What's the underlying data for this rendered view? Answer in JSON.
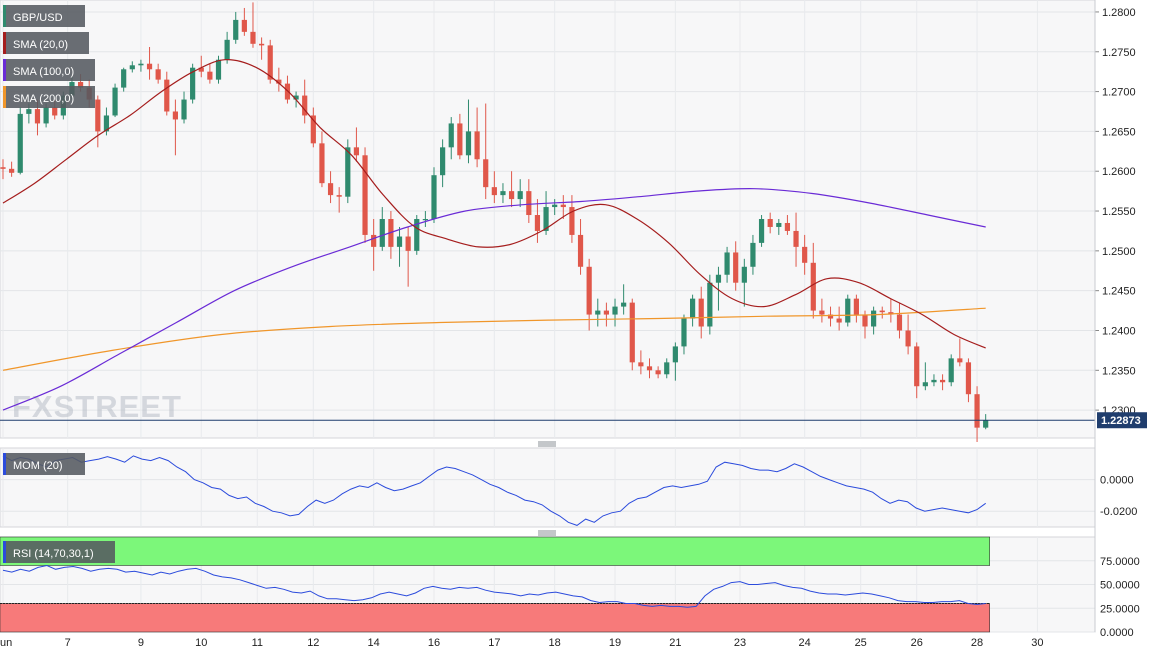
{
  "chart_data": [
    {
      "type": "candlestick",
      "symbol": "GBP/USD",
      "indicators": [
        {
          "name": "SMA (20,0)",
          "color": "#a51d1d"
        },
        {
          "name": "SMA (100,0)",
          "color": "#6a2bd6"
        },
        {
          "name": "SMA (200,0)",
          "color": "#f0962a"
        }
      ],
      "y_ticks": [
        "1.2800",
        "1.2750",
        "1.2700",
        "1.2650",
        "1.2600",
        "1.2550",
        "1.2500",
        "1.2450",
        "1.2400",
        "1.2350",
        "1.2300"
      ],
      "ylim": [
        1.2265,
        1.2815
      ],
      "last_price": "1.22873",
      "watermark": "FXSTREET",
      "colors": {
        "up": "#2f8a6e",
        "down": "#e0574a",
        "background": "#f7f7f8",
        "price_line": "#1f3d6d"
      },
      "candles": [
        [
          1.2605,
          1.2615,
          1.259,
          1.2603
        ],
        [
          1.2603,
          1.2612,
          1.2593,
          1.2598
        ],
        [
          1.2598,
          1.268,
          1.2596,
          1.2672
        ],
        [
          1.2672,
          1.2685,
          1.266,
          1.2678
        ],
        [
          1.2678,
          1.269,
          1.2645,
          1.266
        ],
        [
          1.266,
          1.2685,
          1.2655,
          1.268
        ],
        [
          1.268,
          1.269,
          1.2665,
          1.267
        ],
        [
          1.267,
          1.27,
          1.2665,
          1.2695
        ],
        [
          1.2695,
          1.272,
          1.269,
          1.2712
        ],
        [
          1.2712,
          1.2722,
          1.27,
          1.2705
        ],
        [
          1.2705,
          1.2715,
          1.268,
          1.269
        ],
        [
          1.269,
          1.2695,
          1.263,
          1.265
        ],
        [
          1.265,
          1.268,
          1.2645,
          1.267
        ],
        [
          1.267,
          1.271,
          1.2668,
          1.2705
        ],
        [
          1.2705,
          1.273,
          1.27,
          1.2728
        ],
        [
          1.2728,
          1.2738,
          1.2724,
          1.2733
        ],
        [
          1.2733,
          1.274,
          1.2725,
          1.2735
        ],
        [
          1.2735,
          1.2756,
          1.2715,
          1.2728
        ],
        [
          1.2728,
          1.2735,
          1.271,
          1.2715
        ],
        [
          1.2715,
          1.2725,
          1.267,
          1.2675
        ],
        [
          1.2675,
          1.269,
          1.262,
          1.2665
        ],
        [
          1.2665,
          1.27,
          1.266,
          1.269
        ],
        [
          1.269,
          1.2735,
          1.2685,
          1.273
        ],
        [
          1.273,
          1.2745,
          1.2718,
          1.2725
        ],
        [
          1.2725,
          1.2735,
          1.271,
          1.2715
        ],
        [
          1.2715,
          1.2745,
          1.271,
          1.274
        ],
        [
          1.274,
          1.2775,
          1.2735,
          1.2765
        ],
        [
          1.2765,
          1.28,
          1.276,
          1.279
        ],
        [
          1.279,
          1.2805,
          1.277,
          1.2775
        ],
        [
          1.2775,
          1.2812,
          1.2755,
          1.276
        ],
        [
          1.276,
          1.2768,
          1.274,
          1.2758
        ],
        [
          1.2758,
          1.2765,
          1.271,
          1.2715
        ],
        [
          1.2715,
          1.273,
          1.27,
          1.271
        ],
        [
          1.271,
          1.272,
          1.2685,
          1.269
        ],
        [
          1.269,
          1.27,
          1.268,
          1.2695
        ],
        [
          1.2695,
          1.2715,
          1.266,
          1.267
        ],
        [
          1.267,
          1.268,
          1.263,
          1.2635
        ],
        [
          1.2635,
          1.265,
          1.258,
          1.2585
        ],
        [
          1.2585,
          1.26,
          1.256,
          1.257
        ],
        [
          1.257,
          1.258,
          1.2548,
          1.2568
        ],
        [
          1.2568,
          1.264,
          1.256,
          1.263
        ],
        [
          1.263,
          1.2655,
          1.2612,
          1.262
        ],
        [
          1.262,
          1.263,
          1.251,
          1.252
        ],
        [
          1.252,
          1.254,
          1.2475,
          1.2505
        ],
        [
          1.2505,
          1.2555,
          1.25,
          1.254
        ],
        [
          1.254,
          1.255,
          1.249,
          1.2505
        ],
        [
          1.2505,
          1.253,
          1.248,
          1.2518
        ],
        [
          1.2518,
          1.253,
          1.2455,
          1.25
        ],
        [
          1.25,
          1.2545,
          1.2495,
          1.254
        ],
        [
          1.254,
          1.255,
          1.253,
          1.254
        ],
        [
          1.254,
          1.2605,
          1.2535,
          1.2595
        ],
        [
          1.2595,
          1.264,
          1.258,
          1.263
        ],
        [
          1.263,
          1.2668,
          1.2615,
          1.266
        ],
        [
          1.266,
          1.2672,
          1.2615,
          1.262
        ],
        [
          1.262,
          1.269,
          1.261,
          1.265
        ],
        [
          1.265,
          1.268,
          1.2605,
          1.2615
        ],
        [
          1.2615,
          1.2685,
          1.2565,
          1.258
        ],
        [
          1.258,
          1.26,
          1.256,
          1.257
        ],
        [
          1.257,
          1.2585,
          1.256,
          1.2575
        ],
        [
          1.2575,
          1.26,
          1.2555,
          1.2565
        ],
        [
          1.2565,
          1.259,
          1.2555,
          1.2575
        ],
        [
          1.2575,
          1.259,
          1.2535,
          1.2545
        ],
        [
          1.2545,
          1.2565,
          1.251,
          1.2525
        ],
        [
          1.2525,
          1.2575,
          1.252,
          1.2555
        ],
        [
          1.2555,
          1.2565,
          1.2545,
          1.2558
        ],
        [
          1.2558,
          1.257,
          1.254,
          1.2555
        ],
        [
          1.2555,
          1.257,
          1.251,
          1.252
        ],
        [
          1.252,
          1.254,
          1.247,
          1.248
        ],
        [
          1.248,
          1.249,
          1.24,
          1.242
        ],
        [
          1.242,
          1.244,
          1.2405,
          1.2425
        ],
        [
          1.2425,
          1.2435,
          1.2405,
          1.242
        ],
        [
          1.242,
          1.244,
          1.2405,
          1.243
        ],
        [
          1.243,
          1.2458,
          1.242,
          1.2435
        ],
        [
          1.2435,
          1.244,
          1.235,
          1.236
        ],
        [
          1.236,
          1.2375,
          1.2345,
          1.2355
        ],
        [
          1.2355,
          1.2365,
          1.234,
          1.235
        ],
        [
          1.235,
          1.2355,
          1.234,
          1.2345
        ],
        [
          1.2345,
          1.2365,
          1.234,
          1.236
        ],
        [
          1.236,
          1.2385,
          1.2337,
          1.238
        ],
        [
          1.238,
          1.242,
          1.237,
          1.2415
        ],
        [
          1.2415,
          1.2445,
          1.2405,
          1.244
        ],
        [
          1.244,
          1.2455,
          1.239,
          1.2405
        ],
        [
          1.2405,
          1.247,
          1.2395,
          1.246
        ],
        [
          1.246,
          1.248,
          1.2425,
          1.247
        ],
        [
          1.247,
          1.2505,
          1.246,
          1.2498
        ],
        [
          1.2498,
          1.2512,
          1.245,
          1.246
        ],
        [
          1.246,
          1.249,
          1.243,
          1.248
        ],
        [
          1.248,
          1.252,
          1.247,
          1.251
        ],
        [
          1.251,
          1.2545,
          1.2505,
          1.254
        ],
        [
          1.254,
          1.2548,
          1.2522,
          1.253
        ],
        [
          1.253,
          1.254,
          1.252,
          1.2535
        ],
        [
          1.2535,
          1.2545,
          1.252,
          1.2525
        ],
        [
          1.2525,
          1.2548,
          1.248,
          1.2505
        ],
        [
          1.2505,
          1.252,
          1.247,
          1.2485
        ],
        [
          1.2485,
          1.251,
          1.2415,
          1.2425
        ],
        [
          1.2425,
          1.244,
          1.241,
          1.242
        ],
        [
          1.242,
          1.243,
          1.2405,
          1.2415
        ],
        [
          1.2415,
          1.243,
          1.24,
          1.241
        ],
        [
          1.241,
          1.2445,
          1.2405,
          1.244
        ],
        [
          1.244,
          1.2445,
          1.241,
          1.242
        ],
        [
          1.242,
          1.2425,
          1.239,
          1.2405
        ],
        [
          1.2405,
          1.243,
          1.2395,
          1.2425
        ],
        [
          1.2425,
          1.243,
          1.2415,
          1.2423
        ],
        [
          1.2423,
          1.244,
          1.241,
          1.242
        ],
        [
          1.242,
          1.2435,
          1.239,
          1.24
        ],
        [
          1.24,
          1.242,
          1.237,
          1.238
        ],
        [
          1.238,
          1.2385,
          1.2315,
          1.233
        ],
        [
          1.233,
          1.236,
          1.2325,
          1.2335
        ],
        [
          1.2335,
          1.2345,
          1.233,
          1.2338
        ],
        [
          1.2338,
          1.2345,
          1.2325,
          1.2335
        ],
        [
          1.2335,
          1.237,
          1.233,
          1.2365
        ],
        [
          1.2365,
          1.239,
          1.2355,
          1.236
        ],
        [
          1.236,
          1.2365,
          1.231,
          1.232
        ],
        [
          1.232,
          1.233,
          1.226,
          1.2278
        ],
        [
          1.2278,
          1.2295,
          1.2276,
          1.2287
        ]
      ],
      "sma20": [
        1.256,
        1.2585,
        1.2615,
        1.2645,
        1.267,
        1.27,
        1.2725,
        1.274,
        1.273,
        1.27,
        1.2655,
        1.262,
        1.257,
        1.253,
        1.2515,
        1.2505,
        1.2508,
        1.2525,
        1.255,
        1.2558,
        1.254,
        1.251,
        1.247,
        1.244,
        1.243,
        1.2445,
        1.2465,
        1.246,
        1.244,
        1.242,
        1.2395,
        1.2378
      ],
      "sma100": [
        1.23,
        1.233,
        1.237,
        1.241,
        1.245,
        1.248,
        1.2505,
        1.253,
        1.255,
        1.2558,
        1.2562,
        1.2568,
        1.2575,
        1.2578,
        1.2572,
        1.256,
        1.2545,
        1.253
      ],
      "sma200": [
        1.235,
        1.2375,
        1.2395,
        1.2405,
        1.241,
        1.2413,
        1.2415,
        1.2418,
        1.242,
        1.2428
      ],
      "x_labels": [
        {
          "label": "un",
          "idx": 0
        },
        {
          "label": "7",
          "idx": 7.5
        },
        {
          "label": "9",
          "idx": 16
        },
        {
          "label": "10",
          "idx": 23
        },
        {
          "label": "11",
          "idx": 29.5
        },
        {
          "label": "12",
          "idx": 36
        },
        {
          "label": "14",
          "idx": 43
        },
        {
          "label": "16",
          "idx": 50
        },
        {
          "label": "17",
          "idx": 57
        },
        {
          "label": "18",
          "idx": 64
        },
        {
          "label": "19",
          "idx": 71
        },
        {
          "label": "21",
          "idx": 78
        },
        {
          "label": "23",
          "idx": 85.5
        },
        {
          "label": "24",
          "idx": 93
        },
        {
          "label": "25",
          "idx": 99.5
        },
        {
          "label": "26",
          "idx": 106
        },
        {
          "label": "28",
          "idx": 113
        },
        {
          "label": "30",
          "idx": 120
        }
      ]
    },
    {
      "type": "line",
      "name": "MOM (20)",
      "color": "#2b4bdc",
      "y_ticks": [
        "0.0000",
        "-0.0200"
      ],
      "ylim": [
        -0.03,
        0.02
      ],
      "values": [
        0.015,
        0.012,
        0.014,
        0.013,
        0.01,
        0.008,
        0.012,
        0.013,
        0.014,
        0.011,
        0.012,
        0.013,
        0.0145,
        0.013,
        0.011,
        0.015,
        0.013,
        0.012,
        0.014,
        0.012,
        0.008,
        0.005,
        0.0,
        -0.002,
        -0.005,
        -0.006,
        -0.01,
        -0.012,
        -0.011,
        -0.015,
        -0.017,
        -0.02,
        -0.021,
        -0.023,
        -0.022,
        -0.017,
        -0.013,
        -0.015,
        -0.013,
        -0.009,
        -0.006,
        -0.004,
        -0.005,
        -0.002,
        -0.005,
        -0.007,
        -0.006,
        -0.004,
        -0.002,
        0.002,
        0.006,
        0.008,
        0.007,
        0.005,
        0.003,
        0.0,
        -0.003,
        -0.005,
        -0.008,
        -0.01,
        -0.013,
        -0.014,
        -0.016,
        -0.02,
        -0.023,
        -0.027,
        -0.029,
        -0.025,
        -0.027,
        -0.023,
        -0.021,
        -0.02,
        -0.015,
        -0.012,
        -0.011,
        -0.008,
        -0.005,
        -0.004,
        -0.005,
        -0.004,
        -0.003,
        -0.001,
        0.008,
        0.011,
        0.01,
        0.009,
        0.007,
        0.006,
        0.006,
        0.005,
        0.007,
        0.01,
        0.008,
        0.005,
        0.002,
        0.0,
        -0.002,
        -0.004,
        -0.005,
        -0.006,
        -0.008,
        -0.012,
        -0.015,
        -0.013,
        -0.014,
        -0.018,
        -0.02,
        -0.019,
        -0.018,
        -0.019,
        -0.02,
        -0.021,
        -0.019,
        -0.015
      ]
    },
    {
      "type": "line",
      "name": "RSI (14,70,30,1)",
      "color": "#2b4bdc",
      "y_ticks": [
        "75.0000",
        "50.0000",
        "25.0000",
        "0.0000"
      ],
      "ylim": [
        0,
        100
      ],
      "overbought": 70,
      "oversold": 30,
      "zone_colors": {
        "overbought": "#7cf77a",
        "oversold": "#f77a7a"
      },
      "values": [
        65,
        63,
        66,
        64,
        68,
        70,
        66,
        68,
        69,
        67,
        64,
        66,
        67,
        66,
        63,
        64,
        62,
        60,
        63,
        61,
        64,
        66,
        67,
        64,
        60,
        58,
        57,
        55,
        52,
        49,
        46,
        47,
        45,
        42,
        41,
        43,
        38,
        35,
        35,
        34,
        33,
        34,
        36,
        40,
        42,
        40,
        38,
        41,
        46,
        48,
        46,
        45,
        47,
        46,
        47,
        44,
        42,
        41,
        40,
        38,
        40,
        39,
        41,
        42,
        40,
        38,
        37,
        33,
        31,
        32,
        32,
        30,
        30,
        28,
        27,
        28,
        27,
        27,
        26,
        27,
        38,
        45,
        48,
        52,
        53,
        50,
        50,
        51,
        52,
        49,
        47,
        46,
        43,
        41,
        40,
        40,
        39,
        40,
        41,
        40,
        38,
        36,
        33,
        32,
        32,
        31,
        31,
        32,
        32,
        33,
        30,
        29,
        30
      ]
    }
  ]
}
